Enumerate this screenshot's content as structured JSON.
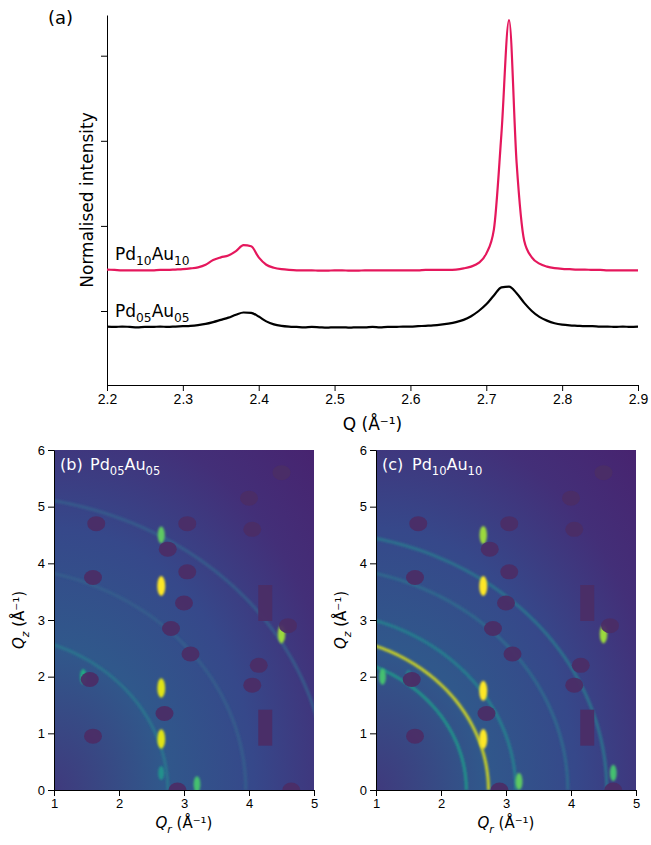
{
  "chart_data": [
    {
      "type": "line",
      "label": "(a)",
      "xlabel": "Q (Å⁻¹)",
      "ylabel": "Normalised intensity",
      "x": [
        2.2,
        2.21,
        2.22,
        2.23,
        2.24,
        2.25,
        2.26,
        2.27,
        2.28,
        2.29,
        2.3,
        2.31,
        2.32,
        2.33,
        2.34,
        2.35,
        2.36,
        2.37,
        2.38,
        2.39,
        2.4,
        2.41,
        2.42,
        2.43,
        2.44,
        2.45,
        2.46,
        2.47,
        2.48,
        2.49,
        2.5,
        2.51,
        2.52,
        2.53,
        2.54,
        2.55,
        2.56,
        2.57,
        2.58,
        2.59,
        2.6,
        2.61,
        2.62,
        2.63,
        2.64,
        2.65,
        2.66,
        2.67,
        2.68,
        2.69,
        2.7,
        2.71,
        2.72,
        2.73,
        2.74,
        2.75,
        2.76,
        2.77,
        2.78,
        2.79,
        2.8,
        2.81,
        2.82,
        2.83,
        2.84,
        2.85,
        2.86,
        2.87,
        2.88,
        2.89,
        2.9
      ],
      "xlim": [
        2.2,
        2.9
      ],
      "xticks": [
        2.2,
        2.3,
        2.4,
        2.5,
        2.6,
        2.7,
        2.8,
        2.9
      ],
      "ylim": [
        0,
        10
      ],
      "yticks": [
        2,
        4.3,
        6.6,
        8.9
      ],
      "tick_labels": "x",
      "series": [
        {
          "name": "Pd10Au10",
          "color": "#e5175c",
          "values": [
            3.12,
            3.11,
            3.1,
            3.1,
            3.1,
            3.1,
            3.1,
            3.11,
            3.11,
            3.12,
            3.13,
            3.15,
            3.18,
            3.25,
            3.38,
            3.45,
            3.5,
            3.62,
            3.78,
            3.75,
            3.45,
            3.25,
            3.17,
            3.13,
            3.11,
            3.1,
            3.1,
            3.1,
            3.09,
            3.09,
            3.1,
            3.1,
            3.09,
            3.09,
            3.1,
            3.1,
            3.1,
            3.1,
            3.1,
            3.1,
            3.1,
            3.1,
            3.11,
            3.11,
            3.11,
            3.11,
            3.12,
            3.15,
            3.2,
            3.3,
            3.55,
            4.2,
            6.8,
            9.86,
            6.0,
            3.9,
            3.45,
            3.28,
            3.2,
            3.16,
            3.14,
            3.13,
            3.12,
            3.12,
            3.11,
            3.11,
            3.1,
            3.1,
            3.1,
            3.1,
            3.1
          ]
        },
        {
          "name": "Pd05Au05",
          "color": "#000000",
          "values": [
            1.58,
            1.57,
            1.58,
            1.57,
            1.56,
            1.57,
            1.57,
            1.58,
            1.57,
            1.58,
            1.59,
            1.6,
            1.62,
            1.65,
            1.7,
            1.76,
            1.82,
            1.9,
            1.96,
            1.95,
            1.85,
            1.72,
            1.64,
            1.6,
            1.58,
            1.57,
            1.56,
            1.57,
            1.56,
            1.55,
            1.56,
            1.56,
            1.55,
            1.56,
            1.56,
            1.57,
            1.56,
            1.57,
            1.57,
            1.58,
            1.58,
            1.59,
            1.6,
            1.61,
            1.63,
            1.66,
            1.7,
            1.76,
            1.86,
            2.0,
            2.18,
            2.42,
            2.64,
            2.66,
            2.48,
            2.22,
            2.0,
            1.84,
            1.74,
            1.67,
            1.63,
            1.61,
            1.6,
            1.59,
            1.59,
            1.58,
            1.58,
            1.57,
            1.58,
            1.57,
            1.58
          ]
        }
      ]
    },
    {
      "type": "heatmap",
      "label": "(b)",
      "title": "Pd05Au05",
      "xlabel": "Qr (Å⁻¹)",
      "ylabel": "Qz (Å⁻¹)",
      "xlim": [
        1,
        5
      ],
      "xticks": [
        1,
        2,
        3,
        4,
        5
      ],
      "ylim": [
        0,
        6
      ],
      "yticks": [
        0,
        1,
        2,
        3,
        4,
        5,
        6
      ],
      "intensity_range": [
        0,
        1
      ],
      "rings": [
        {
          "q": 2.75,
          "intensity": 0.4
        },
        {
          "q": 3.95,
          "intensity": 0.3
        },
        {
          "q": 5.2,
          "intensity": 0.3
        }
      ],
      "rods": [
        {
          "qr": 2.65,
          "intensity": 0.35
        }
      ],
      "spots": [
        {
          "qr": 2.65,
          "qz": 0.9,
          "intensity": 0.95
        },
        {
          "qr": 2.65,
          "qz": 1.8,
          "intensity": 0.95
        },
        {
          "qr": 2.65,
          "qz": 3.6,
          "intensity": 1
        },
        {
          "qr": 2.65,
          "qz": 4.5,
          "intensity": 0.75
        },
        {
          "qr": 1.45,
          "qz": 2.0,
          "intensity": 0.6
        },
        {
          "qr": 4.5,
          "qz": 2.75,
          "intensity": 0.85
        },
        {
          "qr": 3.2,
          "qz": 0.1,
          "intensity": 0.7
        },
        {
          "qr": 2.65,
          "qz": 0.3,
          "intensity": 0.5
        }
      ],
      "masks": [
        {
          "qr": 1.65,
          "qz": 4.7
        },
        {
          "qr": 1.6,
          "qz": 3.75
        },
        {
          "qr": 1.55,
          "qz": 1.95
        },
        {
          "qr": 1.6,
          "qz": 0.95
        },
        {
          "qr": 2.75,
          "qz": 4.25
        },
        {
          "qr": 2.8,
          "qz": 2.85
        },
        {
          "qr": 2.7,
          "qz": 1.35
        },
        {
          "qr": 3.05,
          "qz": 4.7
        },
        {
          "qr": 3.05,
          "qz": 3.85
        },
        {
          "qr": 3.0,
          "qz": 3.3
        },
        {
          "qr": 3.1,
          "qz": 2.4
        },
        {
          "qr": 4.0,
          "qz": 5.15
        },
        {
          "qr": 4.05,
          "qz": 4.6
        },
        {
          "qr": 4.5,
          "qz": 5.6
        },
        {
          "qr": 4.15,
          "qz": 2.2
        },
        {
          "qr": 4.05,
          "qz": 1.85
        },
        {
          "qr": 4.6,
          "qz": 2.9
        },
        {
          "qr": 2.9,
          "qz": 0.0
        },
        {
          "qr": 4.65,
          "qz": 0.0
        }
      ],
      "mask_bars": [
        {
          "qr": 4.25,
          "qz": 3.3
        },
        {
          "qr": 4.25,
          "qz": 1.1
        }
      ]
    },
    {
      "type": "heatmap",
      "label": "(c)",
      "title": "Pd10Au10",
      "xlabel": "Qr (Å⁻¹)",
      "ylabel": "Qz (Å⁻¹)",
      "xlim": [
        1,
        5
      ],
      "xticks": [
        1,
        2,
        3,
        4,
        5
      ],
      "ylim": [
        0,
        6
      ],
      "yticks": [
        0,
        1,
        2,
        3,
        4,
        5,
        6
      ],
      "intensity_range": [
        0,
        1
      ],
      "rings": [
        {
          "q": 2.39,
          "intensity": 0.55
        },
        {
          "q": 2.73,
          "intensity": 0.95
        },
        {
          "q": 3.15,
          "intensity": 0.45
        },
        {
          "q": 3.95,
          "intensity": 0.35
        },
        {
          "q": 4.55,
          "intensity": 0.4
        }
      ],
      "rods": [
        {
          "qr": 2.65,
          "intensity": 0.45
        }
      ],
      "spots": [
        {
          "qr": 2.65,
          "qz": 0.9,
          "intensity": 1
        },
        {
          "qr": 2.65,
          "qz": 1.75,
          "intensity": 1
        },
        {
          "qr": 2.65,
          "qz": 3.6,
          "intensity": 1
        },
        {
          "qr": 2.65,
          "qz": 4.5,
          "intensity": 0.85
        },
        {
          "qr": 1.1,
          "qz": 2.0,
          "intensity": 0.7
        },
        {
          "qr": 1.5,
          "qz": 2.0,
          "intensity": 0.45
        },
        {
          "qr": 4.5,
          "qz": 2.75,
          "intensity": 0.85
        },
        {
          "qr": 3.2,
          "qz": 0.15,
          "intensity": 0.75
        },
        {
          "qr": 4.65,
          "qz": 0.3,
          "intensity": 0.7
        }
      ],
      "masks": [
        {
          "qr": 1.65,
          "qz": 4.7
        },
        {
          "qr": 1.6,
          "qz": 3.75
        },
        {
          "qr": 1.55,
          "qz": 1.95
        },
        {
          "qr": 1.6,
          "qz": 0.95
        },
        {
          "qr": 2.75,
          "qz": 4.25
        },
        {
          "qr": 2.8,
          "qz": 2.85
        },
        {
          "qr": 2.7,
          "qz": 1.35
        },
        {
          "qr": 3.05,
          "qz": 4.7
        },
        {
          "qr": 3.05,
          "qz": 3.85
        },
        {
          "qr": 3.0,
          "qz": 3.3
        },
        {
          "qr": 3.1,
          "qz": 2.4
        },
        {
          "qr": 4.0,
          "qz": 5.15
        },
        {
          "qr": 4.05,
          "qz": 4.6
        },
        {
          "qr": 4.5,
          "qz": 5.6
        },
        {
          "qr": 4.15,
          "qz": 2.2
        },
        {
          "qr": 4.05,
          "qz": 1.85
        },
        {
          "qr": 4.6,
          "qz": 2.9
        },
        {
          "qr": 2.9,
          "qz": 0.0
        },
        {
          "qr": 4.65,
          "qz": 0.0
        }
      ],
      "mask_bars": [
        {
          "qr": 4.25,
          "qz": 3.3
        },
        {
          "qr": 4.25,
          "qz": 1.1
        }
      ]
    }
  ]
}
